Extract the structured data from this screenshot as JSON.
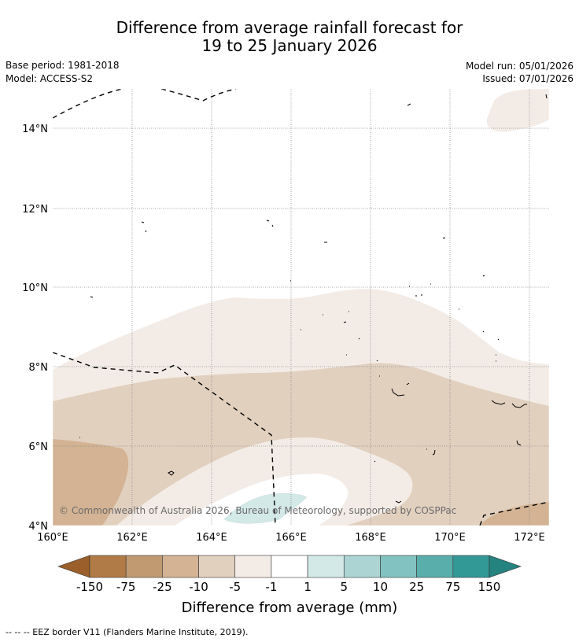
{
  "header": {
    "title_line1": "Difference from average rainfall forecast for",
    "title_line2": "19 to 25 January 2026",
    "base_period": "Base period: 1981-2018",
    "model": "Model: ACCESS-S2",
    "model_run": "Model run: 05/01/2026",
    "issued": "Issued: 07/01/2026"
  },
  "map": {
    "lat_ticks": [
      "14°N",
      "12°N",
      "10°N",
      "8°N",
      "6°N",
      "4°N"
    ],
    "lon_ticks": [
      "160°E",
      "162°E",
      "164°E",
      "166°E",
      "168°E",
      "170°E",
      "172°E"
    ],
    "copyright": "© Commonwealth of Australia 2026, Bureau of Meteorology, supported by COSPPac"
  },
  "colorbar": {
    "labels": [
      "-150",
      "-75",
      "-25",
      "-10",
      "-5",
      "-1",
      "1",
      "5",
      "10",
      "25",
      "75",
      "150"
    ],
    "colors": [
      "#9a5f2b",
      "#b07b46",
      "#c19a72",
      "#d3b393",
      "#e2d0bf",
      "#f3ece6",
      "#ffffff",
      "#d3e9e8",
      "#abd4d2",
      "#82c2c0",
      "#59aeab",
      "#339997",
      "#24827f"
    ],
    "title": "Difference from average (mm)"
  },
  "footer": {
    "legend_note": "--  --  -- EEZ border V11 (Flanders Marine Institute, 2019)."
  }
}
